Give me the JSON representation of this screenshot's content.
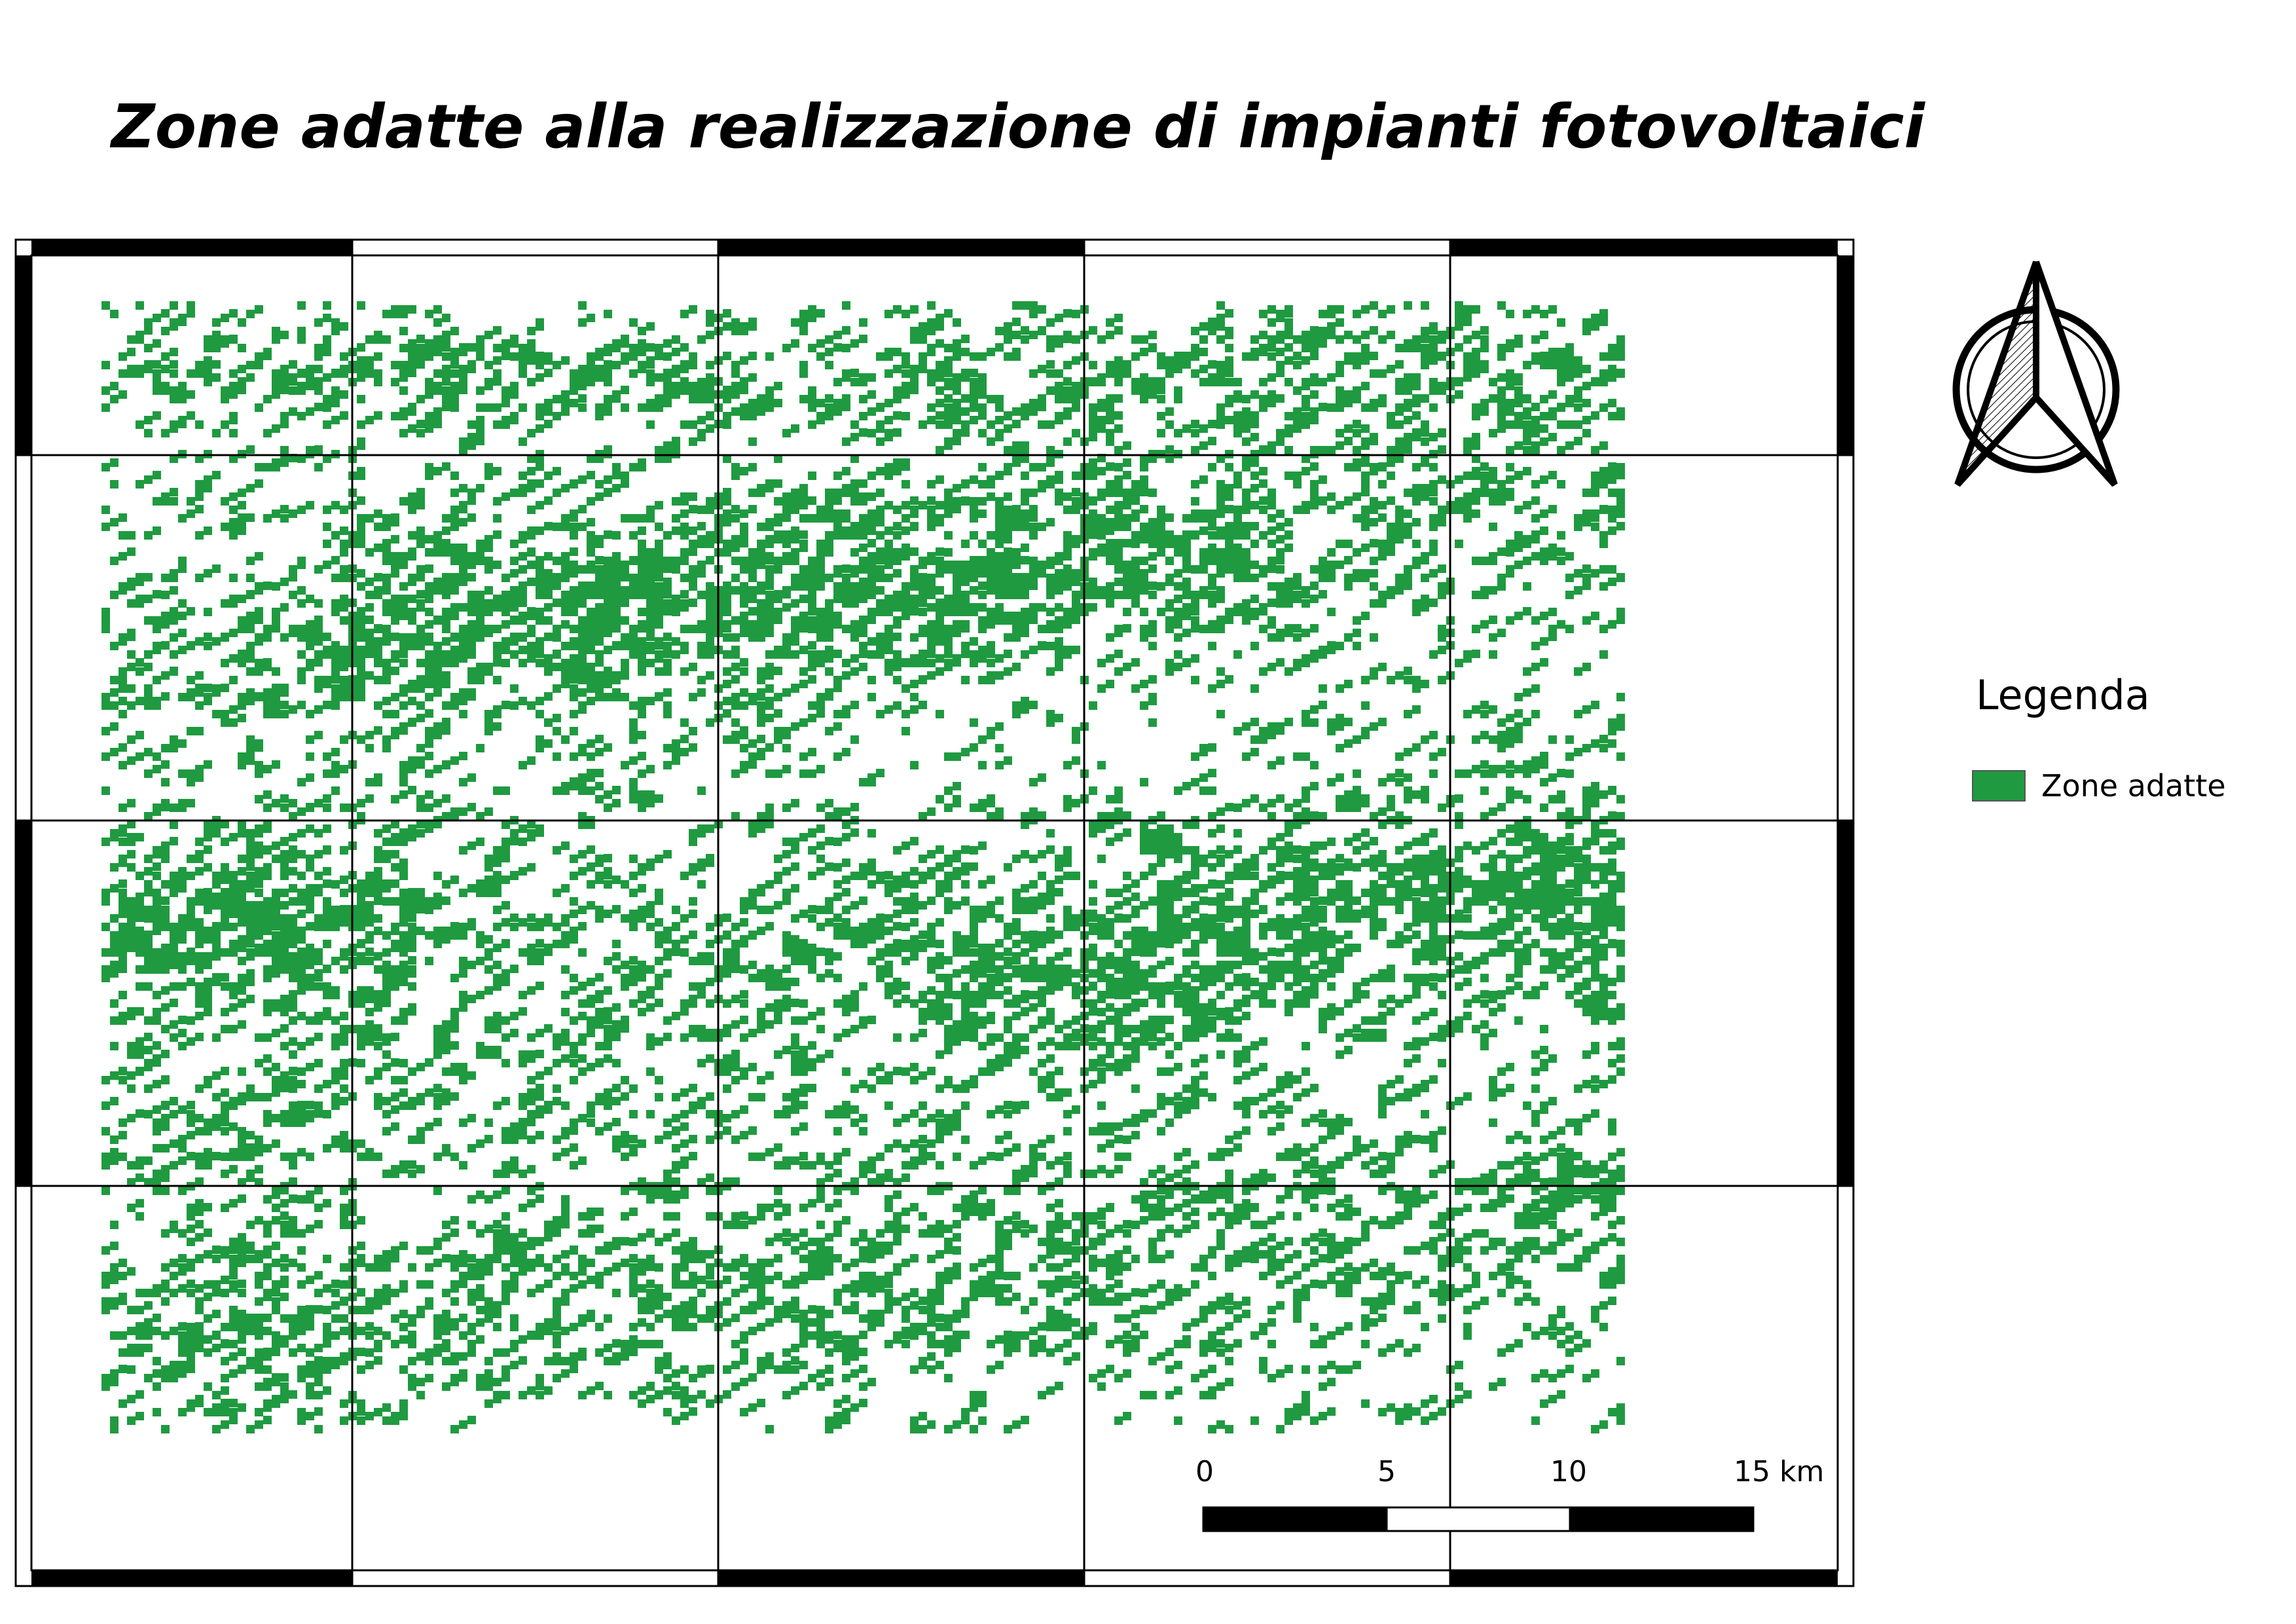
{
  "title": "Zone adatte alla realizzazione di impianti fotovoltaici",
  "legend": {
    "title": "Legenda",
    "items": [
      {
        "label": "Zone adatte",
        "color": "#1f9a40"
      }
    ]
  },
  "scale_bar": {
    "labels": [
      "0",
      "5",
      "10",
      "15 km"
    ],
    "segment_colors": [
      "#000000",
      "#ffffff",
      "#000000"
    ]
  },
  "north_arrow": {
    "icon": "north-arrow-icon"
  },
  "map": {
    "fill_color": "#1f9a40",
    "grid_columns": 5,
    "grid_rows": 4
  }
}
